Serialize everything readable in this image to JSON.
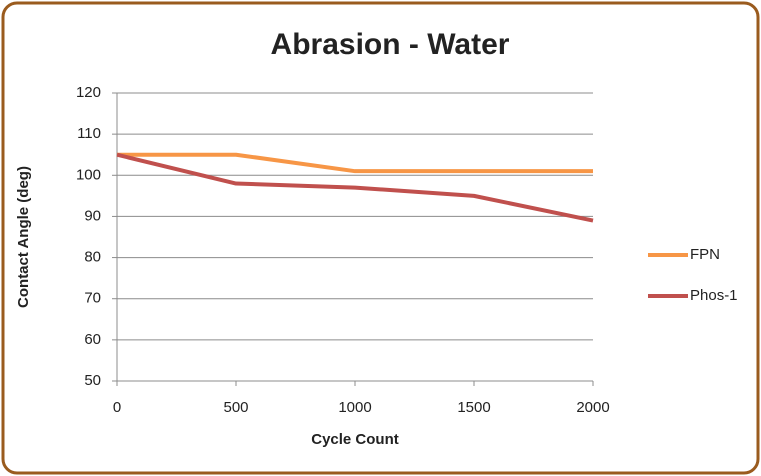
{
  "chart_data": {
    "type": "line",
    "title": "Abrasion - Water",
    "x_label": "Cycle Count",
    "y_label": "Contact Angle (deg)",
    "x": [
      0,
      500,
      1000,
      1500,
      2000
    ],
    "series": [
      {
        "name": "FPN",
        "color": "#f79646",
        "values": [
          105,
          105,
          101,
          101,
          101
        ]
      },
      {
        "name": "Phos-1",
        "color": "#c0504d",
        "values": [
          105,
          98,
          97,
          95,
          89
        ]
      }
    ],
    "xlim": [
      0,
      2000
    ],
    "xticks": [
      0,
      500,
      1000,
      1500,
      2000
    ],
    "ylim": [
      50,
      120
    ],
    "yticks": [
      50,
      60,
      70,
      80,
      90,
      100,
      110,
      120
    ],
    "grid": true,
    "legend": "right"
  }
}
